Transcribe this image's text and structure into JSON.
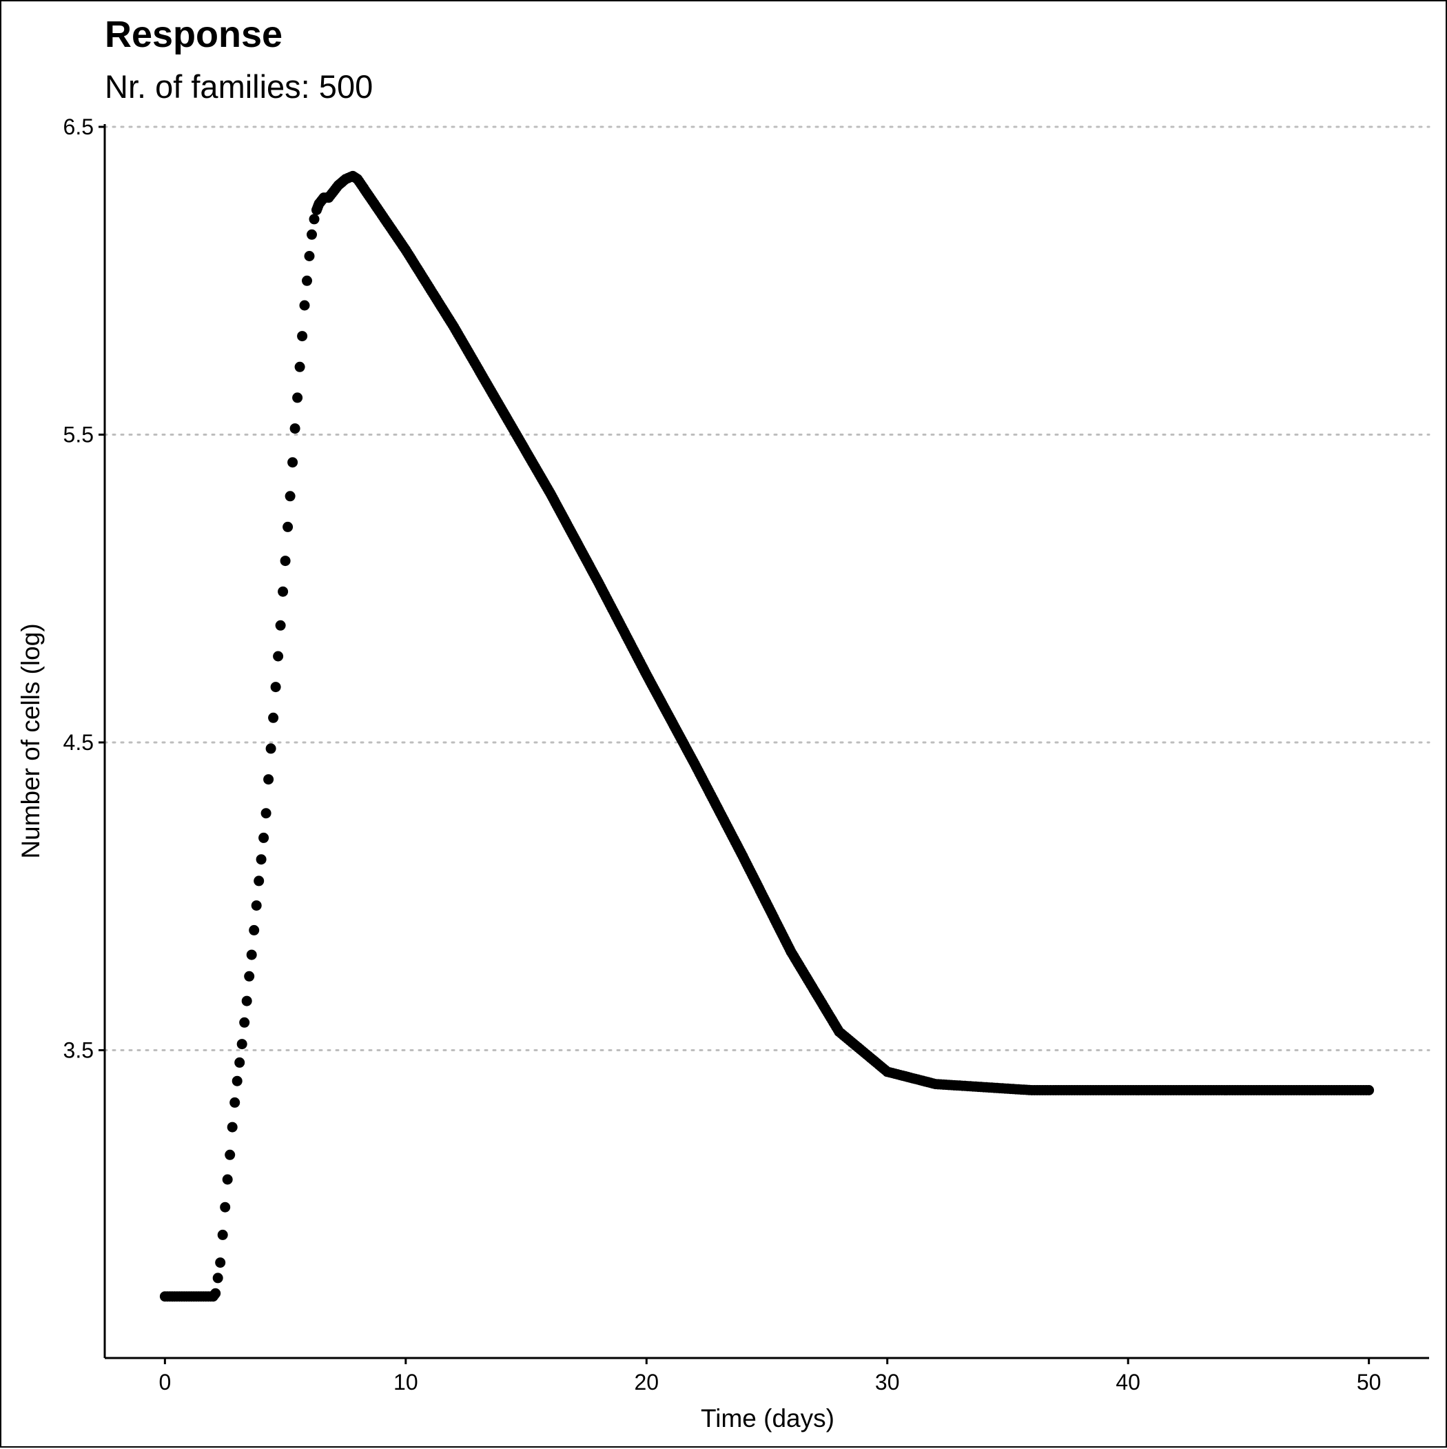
{
  "chart_data": {
    "type": "scatter",
    "title": "Response",
    "subtitle": "Nr. of families: 500",
    "xlabel": "Time (days)",
    "ylabel": "Number of cells (log)",
    "xlim": [
      -2.5,
      52.5
    ],
    "ylim": [
      2.5,
      6.5
    ],
    "xticks": [
      0,
      10,
      20,
      30,
      40,
      50
    ],
    "yticks": [
      3.5,
      4.5,
      5.5,
      6.5
    ],
    "grid": "horizontal-dotted",
    "legend": "none",
    "series": [
      {
        "color": "#000000",
        "x": [
          0,
          0.5,
          1.0,
          1.5,
          2.0,
          2.1,
          2.2,
          2.3,
          2.4,
          2.5,
          2.6,
          2.7,
          2.8,
          2.9,
          3.0,
          3.1,
          3.2,
          3.3,
          3.4,
          3.5,
          3.6,
          3.7,
          3.8,
          3.9,
          4.0,
          4.1,
          4.2,
          4.3,
          4.4,
          4.5,
          4.6,
          4.7,
          4.8,
          4.9,
          5.0,
          5.1,
          5.2,
          5.3,
          5.4,
          5.5,
          5.6,
          5.7,
          5.8,
          5.9,
          6.0,
          6.1,
          6.2,
          6.3,
          6.4,
          6.5,
          6.6,
          6.8,
          7.0,
          7.2,
          7.5,
          7.8,
          8.0,
          10,
          12,
          14,
          16,
          18,
          20,
          22,
          24,
          26,
          28,
          30,
          32,
          34,
          36,
          38,
          40,
          42,
          44,
          46,
          48,
          50
        ],
        "y": [
          2.7,
          2.7,
          2.7,
          2.7,
          2.7,
          2.71,
          2.76,
          2.81,
          2.9,
          2.99,
          3.08,
          3.16,
          3.25,
          3.33,
          3.4,
          3.46,
          3.52,
          3.59,
          3.66,
          3.74,
          3.81,
          3.89,
          3.97,
          4.05,
          4.12,
          4.19,
          4.27,
          4.38,
          4.48,
          4.58,
          4.68,
          4.78,
          4.88,
          4.99,
          5.09,
          5.2,
          5.3,
          5.41,
          5.52,
          5.62,
          5.72,
          5.82,
          5.92,
          6.0,
          6.08,
          6.15,
          6.2,
          6.23,
          6.25,
          6.26,
          6.27,
          6.27,
          6.29,
          6.31,
          6.33,
          6.34,
          6.33,
          6.1,
          5.85,
          5.58,
          5.31,
          5.02,
          4.72,
          4.43,
          4.13,
          3.82,
          3.56,
          3.43,
          3.39,
          3.38,
          3.37,
          3.37,
          3.37,
          3.37,
          3.37,
          3.37,
          3.37,
          3.37
        ]
      }
    ]
  }
}
